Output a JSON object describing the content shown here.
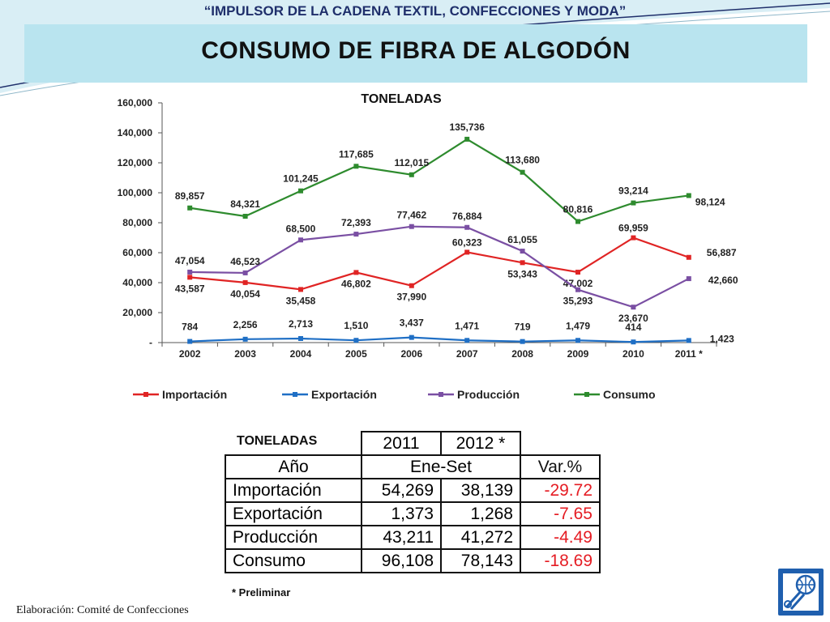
{
  "header": {
    "subtitle": "“IMPULSOR DE LA CADENA TEXTIL, CONFECCIONES Y MODA”",
    "title": "CONSUMO DE FIBRA DE ALGODÓN"
  },
  "colors": {
    "band": "#b9e4ef",
    "importacion": "#e02424",
    "exportacion": "#1f6fc5",
    "produccion": "#7a4fa3",
    "consumo": "#2e8b2e",
    "negative": "#e51c23"
  },
  "chart_data": {
    "type": "line",
    "title": "TONELADAS",
    "x": [
      "2002",
      "2003",
      "2004",
      "2005",
      "2006",
      "2007",
      "2008",
      "2009",
      "2010",
      "2011 *"
    ],
    "ylim": [
      0,
      160000
    ],
    "yticks": [
      "-",
      "20,000",
      "40,000",
      "60,000",
      "80,000",
      "100,000",
      "120,000",
      "140,000",
      "160,000"
    ],
    "grid": false,
    "legend_position": "bottom",
    "series": [
      {
        "name": "Importación",
        "color": "#e02424",
        "values": [
          43587,
          40054,
          35458,
          46802,
          37990,
          60323,
          53343,
          47002,
          69959,
          56887
        ],
        "labels": [
          "43,587",
          "40,054",
          "35,458",
          "46,802",
          "37,990",
          "60,323",
          "53,343",
          "47,002",
          "69,959",
          "56,887"
        ]
      },
      {
        "name": "Exportación",
        "color": "#1f6fc5",
        "values": [
          784,
          2256,
          2713,
          1510,
          3437,
          1471,
          719,
          1479,
          414,
          1423
        ],
        "labels": [
          "784",
          "2,256",
          "2,713",
          "1,510",
          "3,437",
          "1,471",
          "719",
          "1,479",
          "414",
          "1,423"
        ]
      },
      {
        "name": "Producción",
        "color": "#7a4fa3",
        "values": [
          47054,
          46523,
          68500,
          72393,
          77462,
          76884,
          61055,
          35293,
          23670,
          42660
        ],
        "labels": [
          "47,054",
          "46,523",
          "68,500",
          "72,393",
          "77,462",
          "76,884",
          "61,055",
          "35,293",
          "23,670",
          "42,660"
        ]
      },
      {
        "name": "Consumo",
        "color": "#2e8b2e",
        "values": [
          89857,
          84321,
          101245,
          117685,
          112015,
          135736,
          113680,
          80816,
          93214,
          98124
        ],
        "labels": [
          "89,857",
          "84,321",
          "101,245",
          "117,685",
          "112,015",
          "135,736",
          "113,680",
          "80,816",
          "93,214",
          "98,124"
        ]
      }
    ]
  },
  "table": {
    "caption": "TONELADAS",
    "year1": "2011",
    "year2": "2012 *",
    "head_label": "Año",
    "head_period": "Ene-Set",
    "head_var": "Var.%",
    "rows": [
      {
        "name": "Importación",
        "v2011": "54,269",
        "v2012": "38,139",
        "var": "-29.72"
      },
      {
        "name": "Exportación",
        "v2011": "1,373",
        "v2012": "1,268",
        "var": "-7.65"
      },
      {
        "name": "Producción",
        "v2011": "43,211",
        "v2012": "41,272",
        "var": "-4.49"
      },
      {
        "name": "Consumo",
        "v2011": "96,108",
        "v2012": "78,143",
        "var": "-18.69"
      }
    ]
  },
  "footnote": "* Preliminar",
  "credit": "Elaboración: Comité de Confecciones",
  "logo_icon": "textile-committee-logo-icon"
}
